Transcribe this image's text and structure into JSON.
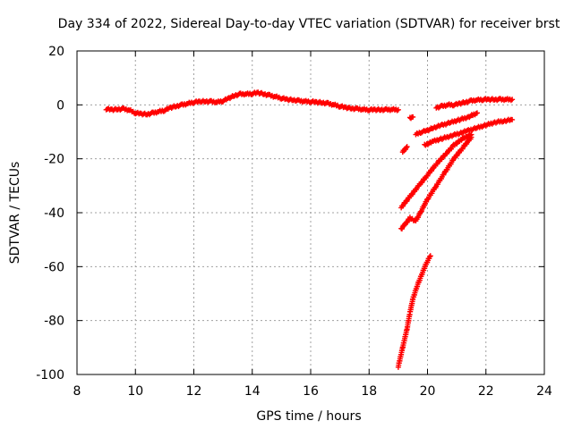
{
  "chart_data": {
    "type": "scatter",
    "title": "Day 334 of 2022, Sidereal Day-to-day VTEC variation (SDTVAR) for receiver brst",
    "xlabel": "GPS time / hours",
    "ylabel": "SDTVAR / TECUs",
    "xlim": [
      8,
      24
    ],
    "ylim": [
      -100,
      20
    ],
    "xticks": [
      "8",
      "10",
      "12",
      "14",
      "16",
      "18",
      "20",
      "22",
      "24"
    ],
    "yticks": [
      "20",
      "0",
      "-20",
      "-40",
      "-60",
      "-80",
      "-100"
    ],
    "grid": true,
    "marker": "plus",
    "color": "#ff0000",
    "series": [
      {
        "points": [
          [
            9.0,
            -1.5
          ],
          [
            9.2,
            -1.8
          ],
          [
            9.4,
            -1.6
          ],
          [
            9.6,
            -1.5
          ],
          [
            9.8,
            -2.0
          ],
          [
            10.0,
            -3.0
          ],
          [
            10.2,
            -3.3
          ],
          [
            10.4,
            -3.5
          ],
          [
            10.6,
            -3.0
          ],
          [
            10.8,
            -2.5
          ],
          [
            11.0,
            -2.0
          ],
          [
            11.2,
            -1.0
          ],
          [
            11.4,
            -0.5
          ],
          [
            11.6,
            0.0
          ],
          [
            11.8,
            0.5
          ],
          [
            12.0,
            1.0
          ],
          [
            12.2,
            1.2
          ],
          [
            12.4,
            1.3
          ],
          [
            12.6,
            1.2
          ],
          [
            12.8,
            1.0
          ],
          [
            13.0,
            1.5
          ],
          [
            13.2,
            2.5
          ],
          [
            13.4,
            3.5
          ],
          [
            13.6,
            4.0
          ],
          [
            13.8,
            4.0
          ],
          [
            14.0,
            4.2
          ],
          [
            14.2,
            4.5
          ],
          [
            14.4,
            4.0
          ],
          [
            14.6,
            3.5
          ],
          [
            14.8,
            3.0
          ],
          [
            15.0,
            2.5
          ],
          [
            15.2,
            2.0
          ],
          [
            15.4,
            1.8
          ],
          [
            15.6,
            1.5
          ],
          [
            15.8,
            1.3
          ],
          [
            16.0,
            1.2
          ],
          [
            16.2,
            1.0
          ],
          [
            16.4,
            0.8
          ],
          [
            16.6,
            0.5
          ],
          [
            16.8,
            0.0
          ],
          [
            17.0,
            -0.5
          ],
          [
            17.2,
            -1.0
          ],
          [
            17.4,
            -1.3
          ],
          [
            17.6,
            -1.5
          ],
          [
            17.8,
            -1.7
          ],
          [
            18.0,
            -1.8
          ],
          [
            18.2,
            -1.8
          ],
          [
            18.4,
            -1.8
          ],
          [
            18.6,
            -1.8
          ],
          [
            18.8,
            -1.7
          ],
          [
            19.0,
            -1.8
          ]
        ]
      },
      {
        "points": [
          [
            19.15,
            -17.5
          ],
          [
            19.3,
            -15.5
          ]
        ]
      },
      {
        "points": [
          [
            19.4,
            -5.0
          ],
          [
            19.5,
            -4.5
          ]
        ]
      },
      {
        "points": [
          [
            19.1,
            -38
          ],
          [
            19.4,
            -34
          ],
          [
            19.7,
            -30
          ],
          [
            20.0,
            -26
          ],
          [
            20.3,
            -22
          ],
          [
            20.6,
            -18.5
          ],
          [
            20.9,
            -15
          ],
          [
            21.2,
            -12.5
          ],
          [
            21.5,
            -11
          ]
        ]
      },
      {
        "points": [
          [
            19.1,
            -46
          ],
          [
            19.25,
            -44
          ],
          [
            19.4,
            -42
          ],
          [
            19.6,
            -43
          ],
          [
            19.8,
            -39
          ],
          [
            20.0,
            -35
          ],
          [
            20.3,
            -30
          ],
          [
            20.6,
            -25
          ],
          [
            20.9,
            -20
          ],
          [
            21.2,
            -16
          ],
          [
            21.5,
            -12
          ]
        ]
      },
      {
        "points": [
          [
            19.0,
            -97
          ],
          [
            19.15,
            -90
          ],
          [
            19.3,
            -83
          ],
          [
            19.4,
            -77
          ],
          [
            19.5,
            -72
          ],
          [
            19.65,
            -67
          ],
          [
            19.8,
            -63
          ],
          [
            19.95,
            -59
          ],
          [
            20.1,
            -56
          ]
        ]
      },
      {
        "points": [
          [
            19.6,
            -11
          ],
          [
            19.8,
            -10
          ],
          [
            20.0,
            -9.5
          ],
          [
            20.2,
            -8.5
          ],
          [
            20.5,
            -7.5
          ],
          [
            20.8,
            -6.5
          ],
          [
            21.1,
            -5.5
          ],
          [
            21.4,
            -4.5
          ],
          [
            21.7,
            -3.0
          ]
        ]
      },
      {
        "points": [
          [
            19.9,
            -15
          ],
          [
            20.2,
            -13.5
          ],
          [
            20.5,
            -12.5
          ],
          [
            20.8,
            -11.5
          ],
          [
            21.1,
            -10.5
          ],
          [
            21.4,
            -9.5
          ],
          [
            21.7,
            -8.5
          ],
          [
            22.0,
            -7.5
          ],
          [
            22.3,
            -6.5
          ],
          [
            22.6,
            -6.0
          ],
          [
            22.9,
            -5.5
          ]
        ]
      },
      {
        "points": [
          [
            20.3,
            -1.0
          ],
          [
            20.5,
            -0.5
          ],
          [
            20.7,
            0.0
          ],
          [
            20.9,
            0.0
          ],
          [
            21.1,
            0.5
          ],
          [
            21.3,
            1.0
          ],
          [
            21.5,
            1.5
          ],
          [
            21.7,
            1.8
          ],
          [
            21.9,
            2.0
          ],
          [
            22.1,
            2.0
          ],
          [
            22.3,
            2.0
          ],
          [
            22.5,
            2.0
          ],
          [
            22.7,
            2.0
          ],
          [
            22.9,
            2.0
          ]
        ]
      }
    ]
  }
}
